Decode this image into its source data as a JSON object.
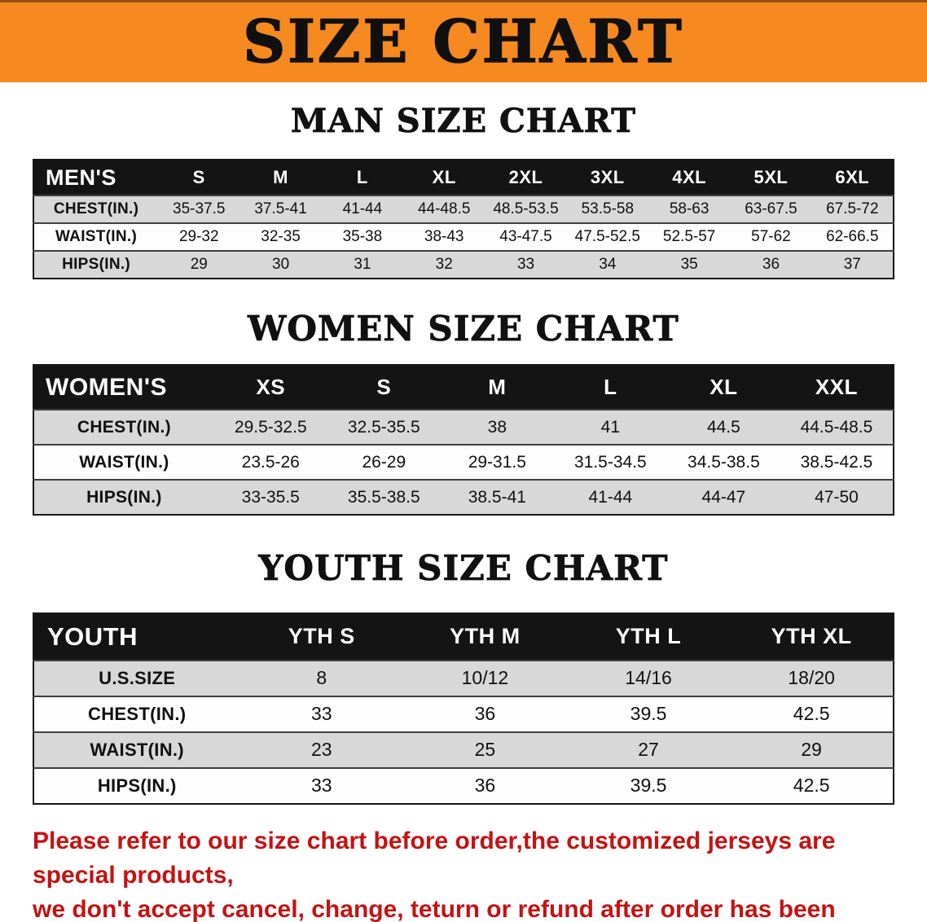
{
  "banner": {
    "title": "SIZE CHART",
    "bg_color": "#f6891f"
  },
  "sections": [
    {
      "heading": "MAN SIZE CHART",
      "table": {
        "corner": "MEN'S",
        "columns": [
          "S",
          "M",
          "L",
          "XL",
          "2XL",
          "3XL",
          "4XL",
          "5XL",
          "6XL"
        ],
        "rows": [
          {
            "label": "CHEST(IN.)",
            "values": [
              "35-37.5",
              "37.5-41",
              "41-44",
              "44-48.5",
              "48.5-53.5",
              "53.5-58",
              "58-63",
              "63-67.5",
              "67.5-72"
            ]
          },
          {
            "label": "WAIST(IN.)",
            "values": [
              "29-32",
              "32-35",
              "35-38",
              "38-43",
              "43-47.5",
              "47.5-52.5",
              "52.5-57",
              "57-62",
              "62-66.5"
            ]
          },
          {
            "label": "HIPS(IN.)",
            "values": [
              "29",
              "30",
              "31",
              "32",
              "33",
              "34",
              "35",
              "36",
              "37"
            ]
          }
        ]
      }
    },
    {
      "heading": "WOMEN SIZE CHART",
      "table": {
        "corner": "WOMEN'S",
        "columns": [
          "XS",
          "S",
          "M",
          "L",
          "XL",
          "XXL"
        ],
        "rows": [
          {
            "label": "CHEST(IN.)",
            "values": [
              "29.5-32.5",
              "32.5-35.5",
              "38",
              "41",
              "44.5",
              "44.5-48.5"
            ]
          },
          {
            "label": "WAIST(IN.)",
            "values": [
              "23.5-26",
              "26-29",
              "29-31.5",
              "31.5-34.5",
              "34.5-38.5",
              "38.5-42.5"
            ]
          },
          {
            "label": "HIPS(IN.)",
            "values": [
              "33-35.5",
              "35.5-38.5",
              "38.5-41",
              "41-44",
              "44-47",
              "47-50"
            ]
          }
        ]
      }
    },
    {
      "heading": "YOUTH SIZE CHART",
      "table": {
        "corner": "YOUTH",
        "columns": [
          "YTH S",
          "YTH M",
          "YTH L",
          "YTH XL"
        ],
        "rows": [
          {
            "label": "U.S.SIZE",
            "values": [
              "8",
              "10/12",
              "14/16",
              "18/20"
            ]
          },
          {
            "label": "CHEST(IN.)",
            "values": [
              "33",
              "36",
              "39.5",
              "42.5"
            ]
          },
          {
            "label": "WAIST(IN.)",
            "values": [
              "23",
              "25",
              "27",
              "29"
            ]
          },
          {
            "label": "HIPS(IN.)",
            "values": [
              "33",
              "36",
              "39.5",
              "42.5"
            ]
          }
        ]
      }
    }
  ],
  "disclaimer": {
    "color": "#c51212",
    "lines": [
      "Please refer to our size chart before order,the customized jerseys are special products,",
      "we don't accept cancel, change, teturn or refund after order has been placed!"
    ]
  }
}
